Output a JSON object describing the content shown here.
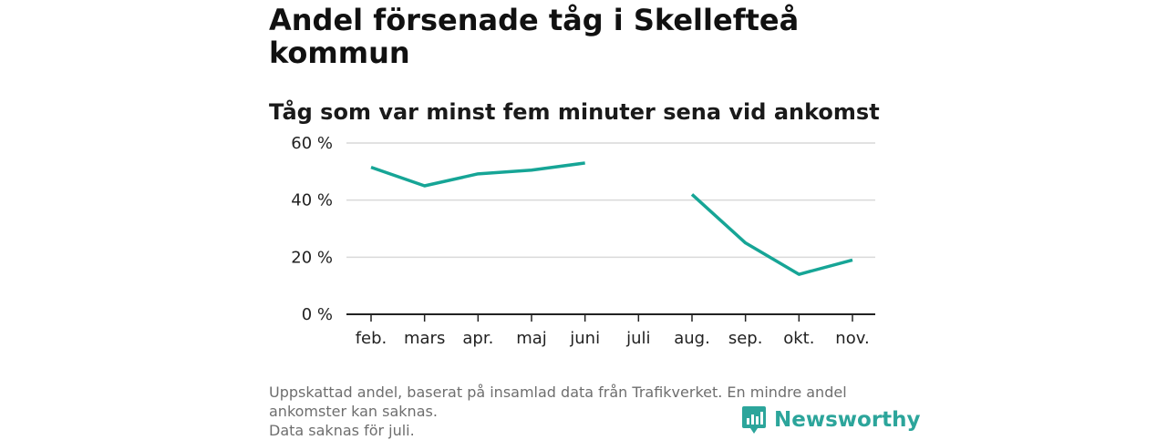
{
  "title": "Andel försenade tåg i Skellefteå kommun",
  "subtitle": "Tåg som var minst fem minuter sena vid ankomst",
  "footer": {
    "note1": "Uppskattad andel, baserat på insamlad data från Trafikverket. En mindre andel ankomster kan saknas.",
    "note2": "Data saknas för juli."
  },
  "logo": {
    "text": "Newsworthy",
    "icon": "newsworthy-chart-icon"
  },
  "colors": {
    "line": "#16a596",
    "grid": "#d9d9d9",
    "axis": "#222222",
    "brand": "#2ca59b"
  },
  "chart_data": {
    "type": "line",
    "title": "Andel försenade tåg i Skellefteå kommun",
    "subtitle": "Tåg som var minst fem minuter sena vid ankomst",
    "categories": [
      "feb.",
      "mars",
      "apr.",
      "maj",
      "juni",
      "juli",
      "aug.",
      "sep.",
      "okt.",
      "nov."
    ],
    "series": [
      {
        "name": "Andel försenade tåg",
        "values": [
          51.5,
          45,
          49.2,
          50.5,
          53,
          null,
          42,
          25,
          14,
          19
        ]
      }
    ],
    "ylim": [
      0,
      60
    ],
    "yticks": [
      0,
      20,
      40,
      60
    ],
    "ytick_labels": [
      "0 %",
      "20 %",
      "40 %",
      "60 %"
    ],
    "xlabel": "",
    "ylabel": "",
    "grid": true,
    "legend": "none"
  }
}
